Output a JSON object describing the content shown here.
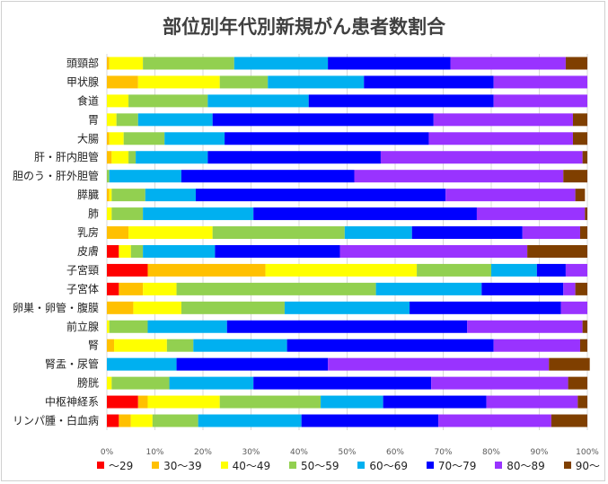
{
  "chart_data": {
    "type": "bar",
    "orientation": "horizontal",
    "stacked": true,
    "title": "部位別年代別新規がん患者数割合",
    "xlim": [
      0,
      100
    ],
    "x_ticks": [
      "0%",
      "10%",
      "20%",
      "30%",
      "40%",
      "50%",
      "60%",
      "70%",
      "80%",
      "90%",
      "100%"
    ],
    "legend_position": "bottom",
    "categories": [
      "頭頸部",
      "甲状腺",
      "食道",
      "胃",
      "大腸",
      "肝・肝内胆管",
      "胆のう・肝外胆管",
      "膵臓",
      "肺",
      "乳房",
      "皮膚",
      "子宮頸",
      "子宮体",
      "卵巣・卵管・腹膜",
      "前立腺",
      "腎",
      "腎盂・尿管",
      "膀胱",
      "中枢神経系",
      "リンパ腫・白血病"
    ],
    "series": [
      {
        "name": "～29",
        "color": "#ff0000",
        "values": [
          0,
          0,
          0,
          0,
          0,
          0,
          0,
          0,
          0,
          0,
          2.5,
          8.5,
          2.5,
          0,
          0,
          0,
          0,
          0,
          6.5,
          2.5
        ]
      },
      {
        "name": "30～39",
        "color": "#ffc000",
        "values": [
          0.5,
          6.5,
          0,
          0,
          0.5,
          1,
          0,
          0.5,
          0,
          4.5,
          0,
          24.5,
          5,
          5.5,
          0,
          1.5,
          0,
          0,
          2,
          2.5
        ]
      },
      {
        "name": "40～49",
        "color": "#ffff00",
        "values": [
          7,
          17,
          4.5,
          2,
          3,
          3.5,
          0,
          0.5,
          1,
          17.5,
          2.5,
          31.5,
          7,
          10,
          0.5,
          11,
          0,
          1,
          15,
          4.5
        ]
      },
      {
        "name": "50～59",
        "color": "#92d050",
        "values": [
          19,
          10,
          16.5,
          4.5,
          8.5,
          1.5,
          0.5,
          7,
          6.5,
          27.5,
          2.5,
          15.5,
          41.5,
          21.5,
          8,
          5.5,
          0,
          12,
          21,
          9.5
        ]
      },
      {
        "name": "60～69",
        "color": "#00b0f0",
        "values": [
          19.5,
          20,
          21,
          15.5,
          12.5,
          15,
          15,
          10.5,
          23,
          14,
          15,
          9.5,
          22,
          26,
          16.5,
          19.5,
          14.5,
          17.5,
          13,
          21.5
        ]
      },
      {
        "name": "70～79",
        "color": "#0000ff",
        "values": [
          25.5,
          27,
          38.5,
          46,
          42.5,
          36,
          36,
          52,
          46.5,
          23,
          26,
          6,
          17,
          31.5,
          50,
          43,
          31.5,
          37,
          21.5,
          28.5
        ]
      },
      {
        "name": "80～89",
        "color": "#9933ff",
        "values": [
          24,
          19.5,
          19.5,
          29,
          30,
          42,
          43.5,
          27,
          22.5,
          12,
          39,
          4.5,
          2.5,
          5.5,
          24,
          18,
          46,
          28.5,
          19,
          23.5
        ]
      },
      {
        "name": "90～",
        "color": "#7f3f00",
        "values": [
          4.5,
          0,
          0,
          3,
          3,
          1,
          5,
          2,
          0.5,
          1.5,
          12.5,
          0,
          2.5,
          0,
          1,
          1.5,
          8.5,
          4,
          2,
          7.5
        ]
      }
    ]
  }
}
